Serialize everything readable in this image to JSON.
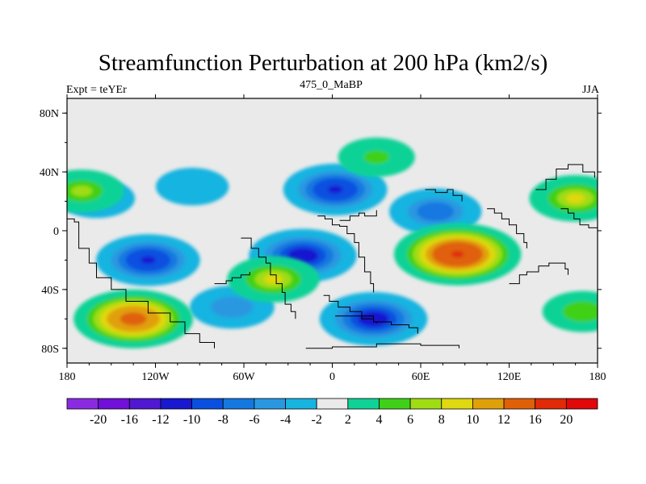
{
  "title": "Streamfunction Perturbation at 200 hPa (km2/s)",
  "subtitle_left": "Expt = teYEr",
  "subtitle_center": "475_0_MaBP",
  "subtitle_right": "JJA",
  "chart_data": {
    "type": "heatmap",
    "variable": "streamfunction perturbation",
    "units": "km2/s",
    "xlim": [
      -180,
      180
    ],
    "ylim": [
      -90,
      90
    ],
    "x_ticks": [
      {
        "value": -180,
        "label": "180"
      },
      {
        "value": -120,
        "label": "120W"
      },
      {
        "value": -60,
        "label": "60W"
      },
      {
        "value": 0,
        "label": "0"
      },
      {
        "value": 60,
        "label": "60E"
      },
      {
        "value": 120,
        "label": "120E"
      },
      {
        "value": 180,
        "label": "180"
      }
    ],
    "y_ticks": [
      {
        "value": 80,
        "label": "80N"
      },
      {
        "value": 40,
        "label": "40N"
      },
      {
        "value": 0,
        "label": "0"
      },
      {
        "value": -40,
        "label": "40S"
      },
      {
        "value": -80,
        "label": "80S"
      }
    ],
    "colorbar": {
      "labels": [
        "-20",
        "-16",
        "-12",
        "-10",
        "-8",
        "-6",
        "-4",
        "-2",
        "2",
        "4",
        "6",
        "8",
        "10",
        "12",
        "16",
        "20"
      ],
      "levels": [
        -20,
        -16,
        -12,
        -10,
        -8,
        -6,
        -4,
        -2,
        2,
        4,
        6,
        8,
        10,
        12,
        16,
        20
      ],
      "colors": [
        "#8a2be2",
        "#7010d8",
        "#5018d0",
        "#1818d0",
        "#0a50e0",
        "#1478e0",
        "#2a98e0",
        "#18b4e0",
        "#eaeaea",
        "#10d296",
        "#40d018",
        "#a0dc14",
        "#e0d810",
        "#e0a008",
        "#e06008",
        "#e02a08",
        "#e00808"
      ]
    },
    "anomalies": [
      {
        "lon": -125,
        "lat": -20,
        "value": -11
      },
      {
        "lon": -20,
        "lat": -17,
        "value": -12
      },
      {
        "lon": 2,
        "lat": 28,
        "value": -11
      },
      {
        "lon": 70,
        "lat": 13,
        "value": -8
      },
      {
        "lon": 28,
        "lat": -60,
        "value": -12
      },
      {
        "lon": -68,
        "lat": -52,
        "value": -6
      },
      {
        "lon": -160,
        "lat": 22,
        "value": -4
      },
      {
        "lon": -95,
        "lat": 30,
        "value": -3
      },
      {
        "lon": 85,
        "lat": -16,
        "value": 17
      },
      {
        "lon": -135,
        "lat": -60,
        "value": 15
      },
      {
        "lon": -40,
        "lat": -33,
        "value": 8
      },
      {
        "lon": 165,
        "lat": 22,
        "value": 8
      },
      {
        "lon": -170,
        "lat": 27,
        "value": 6
      },
      {
        "lon": 30,
        "lat": 50,
        "value": 4
      },
      {
        "lon": 170,
        "lat": -55,
        "value": 5
      }
    ]
  }
}
